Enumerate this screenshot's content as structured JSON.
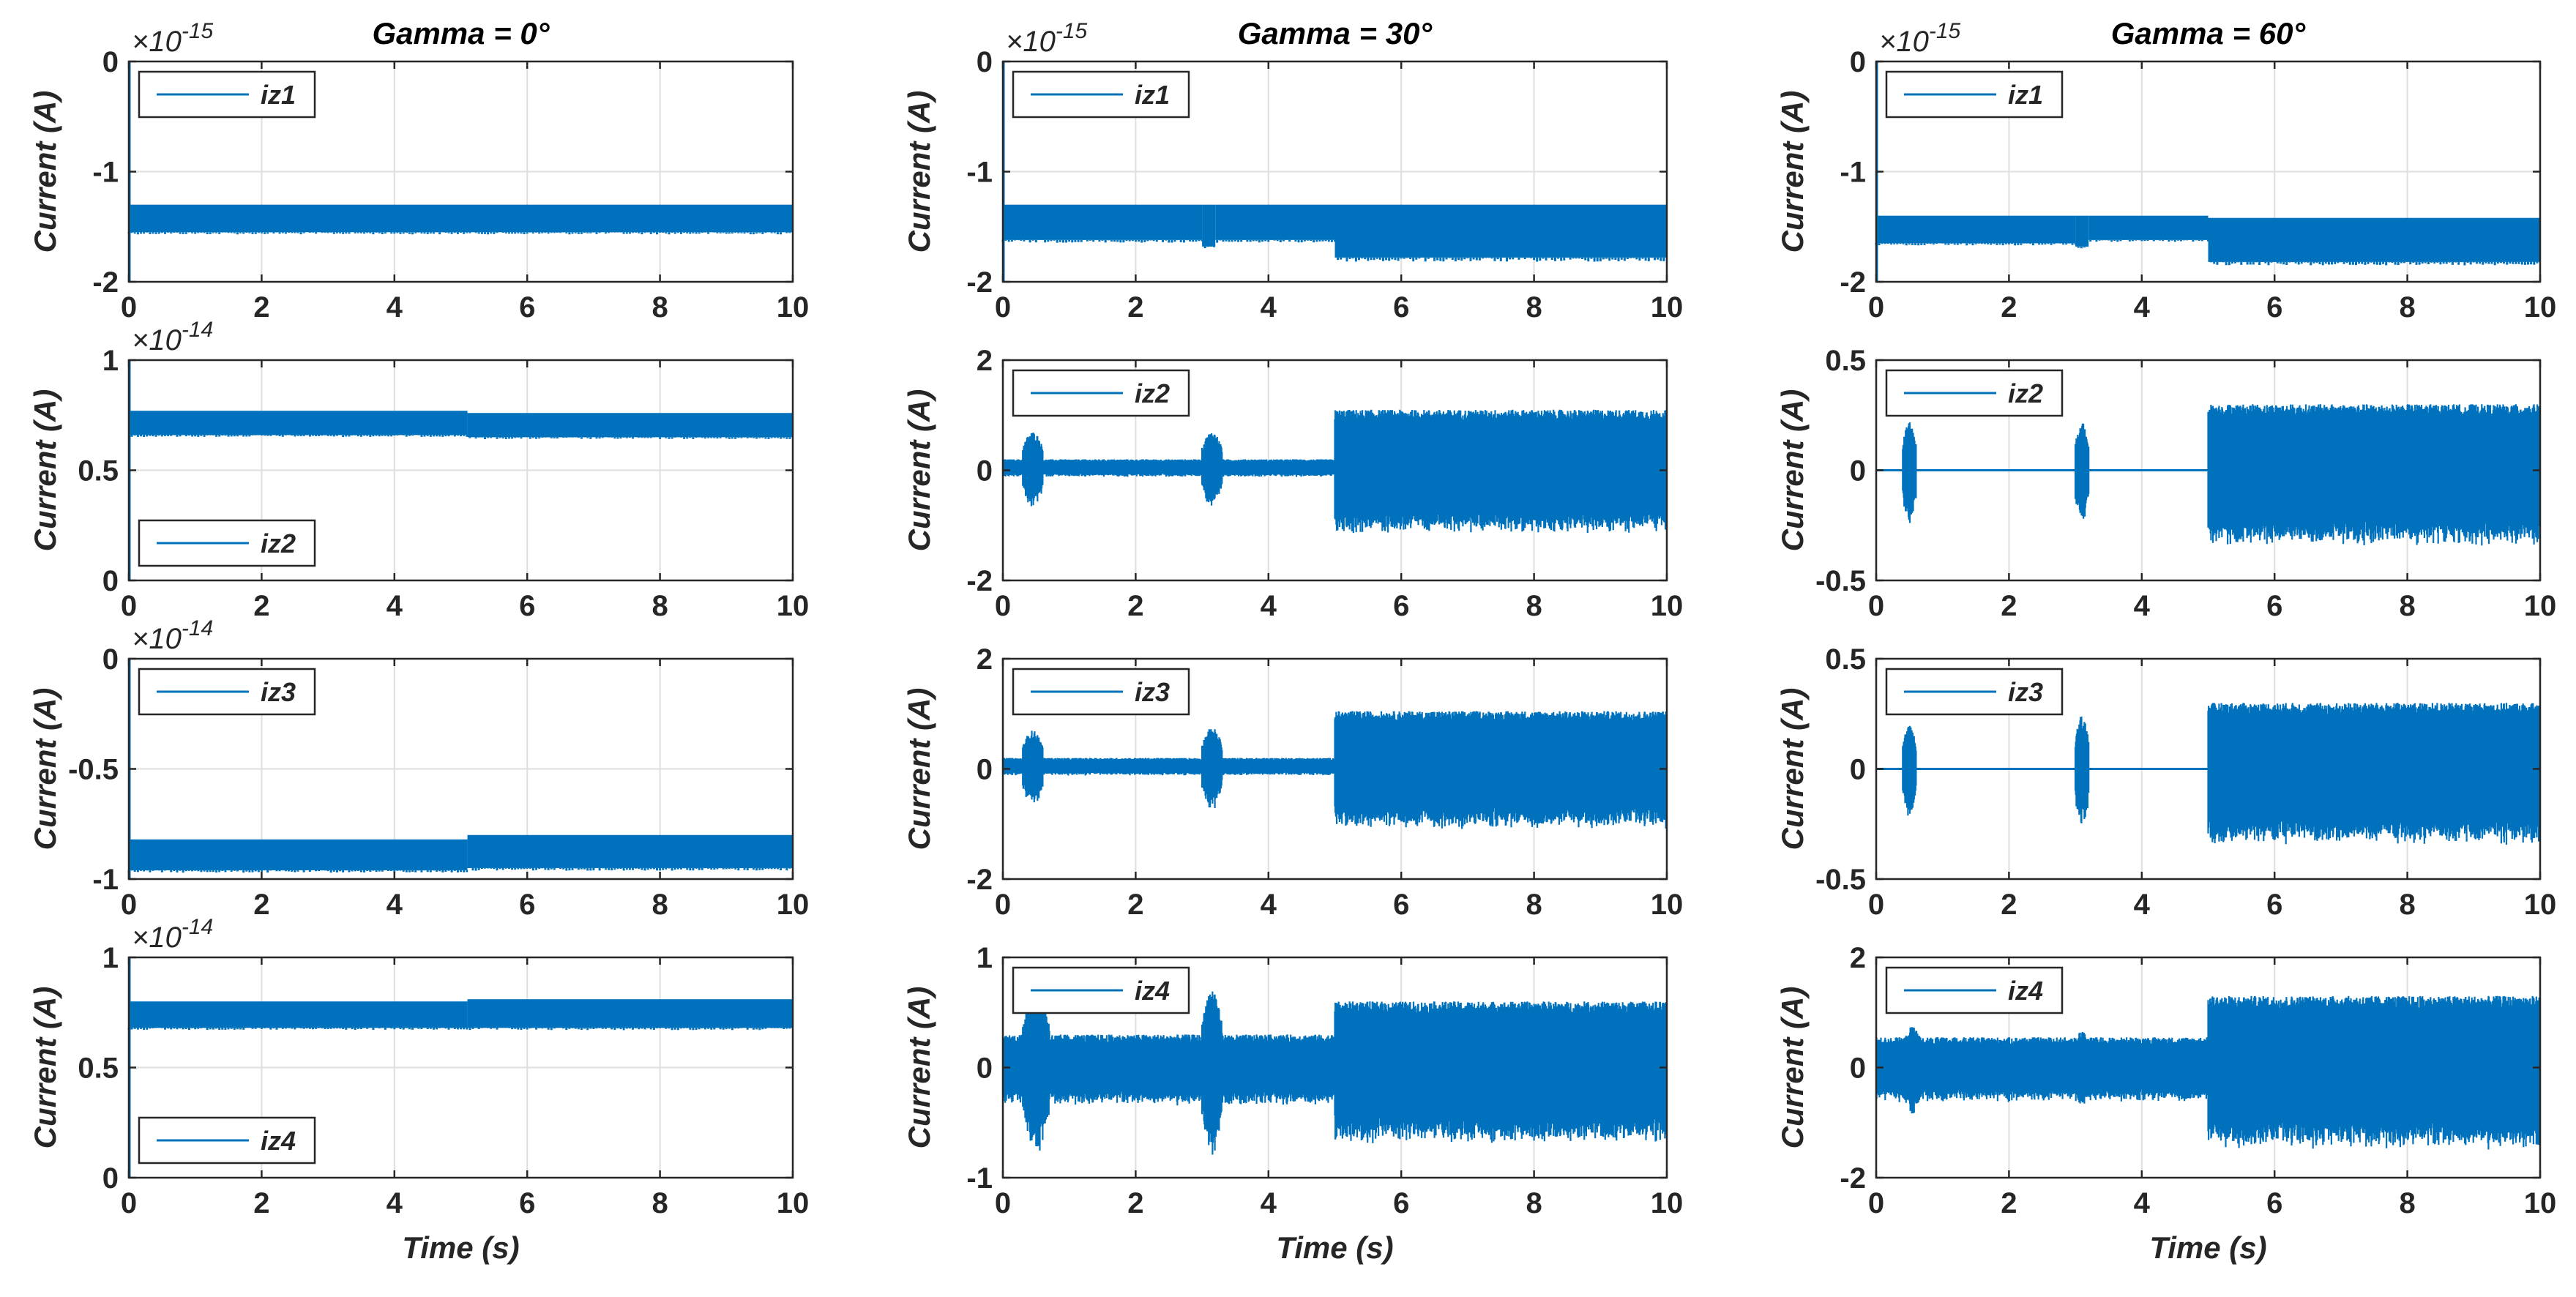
{
  "chart_data": {
    "type": "line",
    "rows": 4,
    "cols": 3,
    "series_color": "#0072BD",
    "subplots": [
      {
        "row": 0,
        "col": 0,
        "title": "Gamma = 0°",
        "ylabel": "Current (A)",
        "xlabel": "",
        "legend": "iz1",
        "legend_loc": "top-left",
        "exponent": "-15",
        "ylim": [
          -2,
          0
        ],
        "yticks": [
          "0",
          "-1",
          "-2"
        ],
        "xlim": [
          0,
          10
        ],
        "xticks": [
          "0",
          "2",
          "4",
          "6",
          "8",
          "10"
        ],
        "signal": {
          "kind": "offset",
          "bands": [
            [
              0,
              10,
              -1.55,
              -1.3
            ]
          ],
          "spikes": [
            [
              0,
              -2,
              0
            ]
          ]
        }
      },
      {
        "row": 1,
        "col": 0,
        "title": "",
        "ylabel": "Current (A)",
        "xlabel": "",
        "legend": "iz2",
        "legend_loc": "bottom-left",
        "exponent": "-14",
        "ylim": [
          0,
          1
        ],
        "yticks": [
          "1",
          "0.5",
          "0"
        ],
        "xlim": [
          0,
          10
        ],
        "xticks": [
          "0",
          "2",
          "4",
          "6",
          "8",
          "10"
        ],
        "signal": {
          "kind": "offset",
          "bands": [
            [
              0,
              5.1,
              0.66,
              0.77
            ],
            [
              5.1,
              10,
              0.65,
              0.76
            ]
          ],
          "spikes": [
            [
              0,
              0,
              1
            ]
          ]
        }
      },
      {
        "row": 2,
        "col": 0,
        "title": "",
        "ylabel": "Current (A)",
        "xlabel": "",
        "legend": "iz3",
        "legend_loc": "top-left",
        "exponent": "-14",
        "ylim": [
          -1,
          0
        ],
        "yticks": [
          "0",
          "-0.5",
          "-1"
        ],
        "xlim": [
          0,
          10
        ],
        "xticks": [
          "0",
          "2",
          "4",
          "6",
          "8",
          "10"
        ],
        "signal": {
          "kind": "offset",
          "bands": [
            [
              0,
              5.1,
              -0.96,
              -0.82
            ],
            [
              5.1,
              10,
              -0.95,
              -0.8
            ]
          ],
          "spikes": [
            [
              0,
              -1,
              0
            ]
          ]
        }
      },
      {
        "row": 3,
        "col": 0,
        "title": "",
        "ylabel": "Current (A)",
        "xlabel": "Time (s)",
        "legend": "iz4",
        "legend_loc": "bottom-left",
        "exponent": "-14",
        "ylim": [
          0,
          1
        ],
        "yticks": [
          "1",
          "0.5",
          "0"
        ],
        "xlim": [
          0,
          10
        ],
        "xticks": [
          "0",
          "2",
          "4",
          "6",
          "8",
          "10"
        ],
        "signal": {
          "kind": "offset",
          "bands": [
            [
              0,
              5.1,
              0.68,
              0.8
            ],
            [
              5.1,
              10,
              0.68,
              0.81
            ]
          ],
          "spikes": [
            [
              0,
              0,
              1
            ]
          ]
        }
      },
      {
        "row": 0,
        "col": 1,
        "title": "Gamma = 30°",
        "ylabel": "Current (A)",
        "xlabel": "",
        "legend": "iz1",
        "legend_loc": "top-left",
        "exponent": "-15",
        "ylim": [
          -2,
          0
        ],
        "yticks": [
          "0",
          "-1",
          "-2"
        ],
        "xlim": [
          0,
          10
        ],
        "xticks": [
          "0",
          "2",
          "4",
          "6",
          "8",
          "10"
        ],
        "signal": {
          "kind": "offset",
          "bands": [
            [
              0,
              3.0,
              -1.62,
              -1.3
            ],
            [
              3.0,
              3.2,
              -1.68,
              -1.3
            ],
            [
              3.2,
              5.0,
              -1.62,
              -1.3
            ],
            [
              5.0,
              10,
              -1.78,
              -1.3
            ]
          ],
          "spikes": [
            [
              0,
              -2,
              0
            ]
          ]
        }
      },
      {
        "row": 1,
        "col": 1,
        "title": "",
        "ylabel": "Current (A)",
        "xlabel": "",
        "legend": "iz2",
        "legend_loc": "top-left",
        "exponent": "",
        "ylim": [
          -2,
          2
        ],
        "yticks": [
          "2",
          "0",
          "-2"
        ],
        "xlim": [
          0,
          10
        ],
        "xticks": [
          "0",
          "2",
          "4",
          "6",
          "8",
          "10"
        ],
        "signal": {
          "kind": "noise",
          "base": 0.15,
          "bursts": [
            [
              0.3,
              0.6,
              0.65
            ],
            [
              3.0,
              3.3,
              0.65
            ]
          ],
          "high_start": 5.0,
          "high_amp": 1.05,
          "center": 0.05
        }
      },
      {
        "row": 2,
        "col": 1,
        "title": "",
        "ylabel": "Current (A)",
        "xlabel": "",
        "legend": "iz3",
        "legend_loc": "top-left",
        "exponent": "",
        "ylim": [
          -2,
          2
        ],
        "yticks": [
          "2",
          "0",
          "-2"
        ],
        "xlim": [
          0,
          10
        ],
        "xticks": [
          "0",
          "2",
          "4",
          "6",
          "8",
          "10"
        ],
        "signal": {
          "kind": "noise",
          "base": 0.15,
          "bursts": [
            [
              0.3,
              0.6,
              0.65
            ],
            [
              3.0,
              3.3,
              0.7
            ]
          ],
          "high_start": 5.0,
          "high_amp": 1.0,
          "center": 0.05
        }
      },
      {
        "row": 3,
        "col": 1,
        "title": "",
        "ylabel": "Current (A)",
        "xlabel": "Time (s)",
        "legend": "iz4",
        "legend_loc": "top-left",
        "exponent": "",
        "ylim": [
          -1,
          1
        ],
        "yticks": [
          "1",
          "0",
          "-1"
        ],
        "xlim": [
          0,
          10
        ],
        "xticks": [
          "0",
          "2",
          "4",
          "6",
          "8",
          "10"
        ],
        "signal": {
          "kind": "noise",
          "base": 0.3,
          "bursts": [
            [
              0.3,
              0.7,
              0.72
            ],
            [
              3.0,
              3.3,
              0.72
            ]
          ],
          "high_start": 5.0,
          "high_amp": 0.6,
          "center": 0.0
        }
      },
      {
        "row": 0,
        "col": 2,
        "title": "Gamma = 60°",
        "ylabel": "Current (A)",
        "xlabel": "",
        "legend": "iz1",
        "legend_loc": "top-left",
        "exponent": "-15",
        "ylim": [
          -2,
          0
        ],
        "yticks": [
          "0",
          "-1",
          "-2"
        ],
        "xlim": [
          0,
          10
        ],
        "xticks": [
          "0",
          "2",
          "4",
          "6",
          "8",
          "10"
        ],
        "signal": {
          "kind": "offset",
          "bands": [
            [
              0,
              3.0,
              -1.65,
              -1.4
            ],
            [
              3.0,
              3.2,
              -1.68,
              -1.4
            ],
            [
              3.2,
              5.0,
              -1.62,
              -1.4
            ],
            [
              5.0,
              10,
              -1.82,
              -1.42
            ]
          ],
          "spikes": [
            [
              0,
              -2,
              0
            ]
          ]
        }
      },
      {
        "row": 1,
        "col": 2,
        "title": "",
        "ylabel": "Current (A)",
        "xlabel": "",
        "legend": "iz2",
        "legend_loc": "top-left",
        "exponent": "",
        "ylim": [
          -0.5,
          0.5
        ],
        "yticks": [
          "0.5",
          "0",
          "-0.5"
        ],
        "xlim": [
          0,
          10
        ],
        "xticks": [
          "0",
          "2",
          "4",
          "6",
          "8",
          "10"
        ],
        "signal": {
          "kind": "noise",
          "base": 0.0,
          "bursts": [
            [
              0.4,
              0.6,
              0.22
            ],
            [
              3.0,
              3.2,
              0.22
            ]
          ],
          "high_start": 5.0,
          "high_amp": 0.3,
          "center": 0.0
        }
      },
      {
        "row": 2,
        "col": 2,
        "title": "",
        "ylabel": "Current (A)",
        "xlabel": "",
        "legend": "iz3",
        "legend_loc": "top-left",
        "exponent": "",
        "ylim": [
          -0.5,
          0.5
        ],
        "yticks": [
          "0.5",
          "0",
          "-0.5"
        ],
        "xlim": [
          0,
          10
        ],
        "xticks": [
          "0",
          "2",
          "4",
          "6",
          "8",
          "10"
        ],
        "signal": {
          "kind": "noise",
          "base": 0.0,
          "bursts": [
            [
              0.4,
              0.6,
              0.2
            ],
            [
              3.0,
              3.2,
              0.24
            ]
          ],
          "high_start": 5.0,
          "high_amp": 0.3,
          "center": 0.0
        }
      },
      {
        "row": 3,
        "col": 2,
        "title": "",
        "ylabel": "Current (A)",
        "xlabel": "Time (s)",
        "legend": "iz4",
        "legend_loc": "top-left",
        "exponent": "",
        "ylim": [
          -2,
          2
        ],
        "yticks": [
          "2",
          "0",
          "-2"
        ],
        "xlim": [
          0,
          10
        ],
        "xticks": [
          "0",
          "2",
          "4",
          "6",
          "8",
          "10"
        ],
        "signal": {
          "kind": "noise",
          "base": 0.55,
          "bursts": [
            [
              0.4,
              0.7,
              0.75
            ],
            [
              3.0,
              3.2,
              0.7
            ]
          ],
          "high_start": 5.0,
          "high_amp": 1.3,
          "center": 0.0
        }
      }
    ]
  }
}
